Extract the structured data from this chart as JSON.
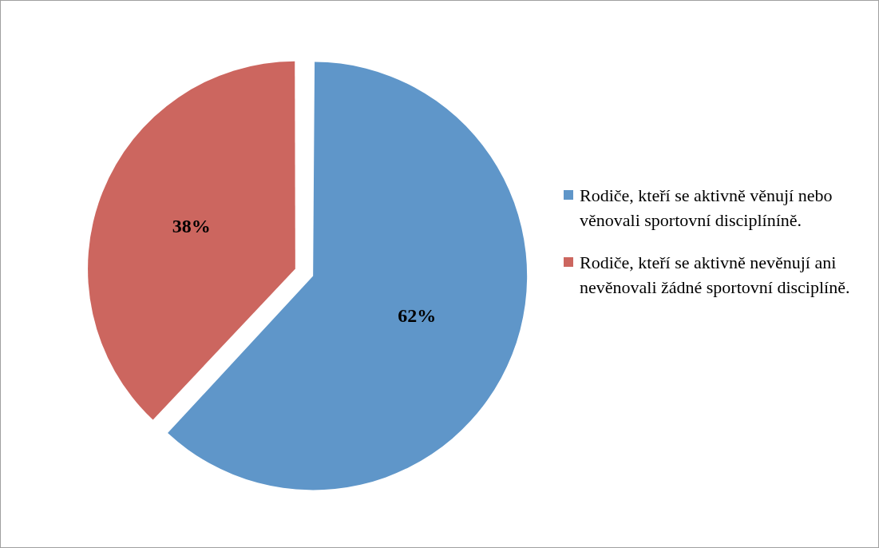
{
  "chart_data": {
    "type": "pie",
    "categories": [
      "Rodiče, kteří se aktivně věnují nebo věnovali sportovní disciplíníně.",
      "Rodiče, kteří se aktivně nevěnují ani nevěnovali žádné sportovní disciplíně."
    ],
    "values": [
      62,
      38
    ],
    "colors": [
      "#5f96c9",
      "#cc665f"
    ],
    "value_labels": [
      "62%",
      "38%"
    ],
    "legend": "right"
  }
}
